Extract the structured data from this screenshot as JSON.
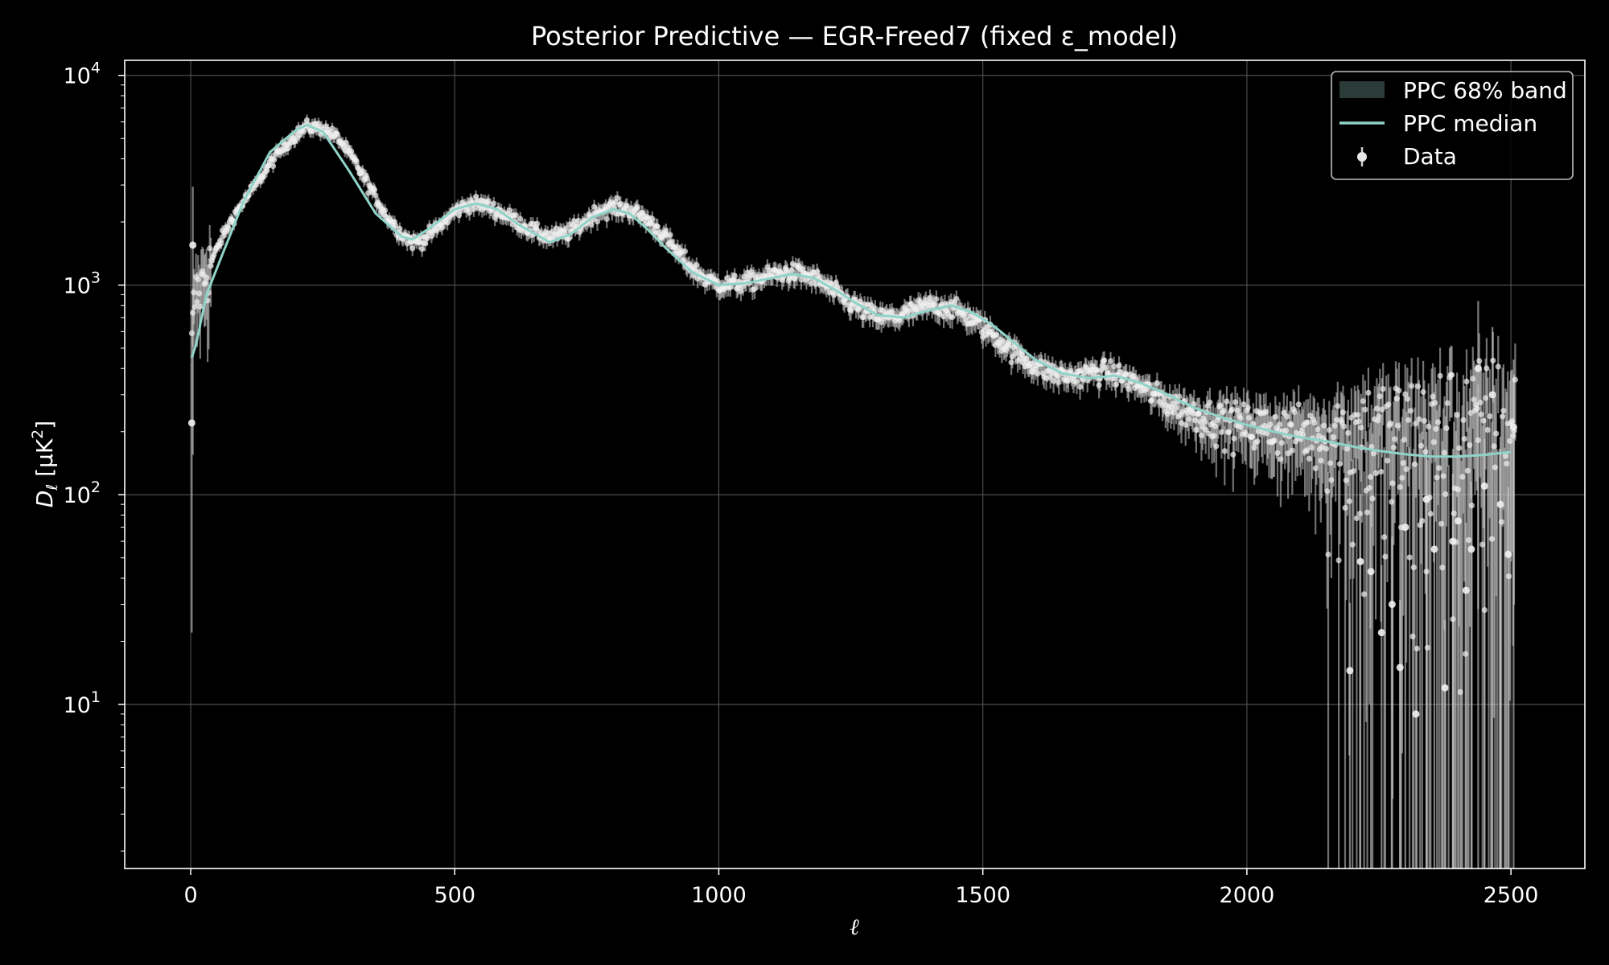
{
  "chart_data": {
    "type": "scatter",
    "title": "Posterior Predictive — EGR-Freed7 (fixed ε_model)",
    "xlabel": "ℓ",
    "ylabel": "D_ℓ [μK²]",
    "ylabel_main": "D",
    "ylabel_sub": "ℓ",
    "ylabel_unit_prefix": " [μK",
    "ylabel_unit_suffix": "]",
    "ylabel_unit_sup": "2",
    "x_scale": "linear",
    "y_scale": "log",
    "xlim": [
      -125,
      2640
    ],
    "ylim": [
      1.65,
      11800
    ],
    "x_ticks": [
      0,
      500,
      1000,
      1500,
      2000,
      2500
    ],
    "y_ticks": [
      {
        "value": 10,
        "base": "10",
        "exp": "1"
      },
      {
        "value": 100,
        "base": "10",
        "exp": "2"
      },
      {
        "value": 1000,
        "base": "10",
        "exp": "3"
      },
      {
        "value": 10000,
        "base": "10",
        "exp": "4"
      }
    ],
    "grid": true,
    "legend_position": "top-right",
    "legend": [
      {
        "label": "PPC 68% band",
        "kind": "band"
      },
      {
        "label": "PPC median",
        "kind": "line"
      },
      {
        "label": "Data",
        "kind": "errorbar"
      }
    ],
    "colors": {
      "background": "#000000",
      "band": "#2a3b38",
      "median": "#8fd3c9",
      "data": "#f0f0f0",
      "error": "#cfcfcf",
      "grid": "#5a5a5a",
      "text": "#ffffff"
    },
    "ppc_median": {
      "x": [
        2,
        10,
        30,
        60,
        100,
        150,
        200,
        220,
        250,
        300,
        350,
        400,
        420,
        450,
        500,
        540,
        580,
        620,
        680,
        720,
        760,
        800,
        830,
        860,
        900,
        950,
        1000,
        1050,
        1100,
        1140,
        1180,
        1220,
        1260,
        1300,
        1350,
        1400,
        1440,
        1480,
        1520,
        1560,
        1600,
        1650,
        1700,
        1750,
        1800,
        1850,
        1900,
        1950,
        2000,
        2050,
        2100,
        2150,
        2200,
        2250,
        2300,
        2350,
        2400,
        2450,
        2500
      ],
      "y": [
        450,
        520,
        900,
        1400,
        2500,
        4300,
        5500,
        5800,
        5400,
        3500,
        2200,
        1700,
        1650,
        1850,
        2300,
        2450,
        2300,
        1950,
        1600,
        1750,
        2100,
        2300,
        2200,
        1900,
        1500,
        1150,
        1000,
        1020,
        1080,
        1130,
        1080,
        950,
        820,
        720,
        700,
        760,
        800,
        740,
        640,
        530,
        440,
        380,
        360,
        370,
        340,
        300,
        260,
        235,
        215,
        200,
        188,
        180,
        170,
        162,
        156,
        152,
        152,
        155,
        160
      ]
    },
    "data_envelope": {
      "x": [
        2,
        5,
        10,
        20,
        30,
        45,
        60,
        80,
        100,
        130,
        160,
        190,
        220,
        250,
        280,
        310,
        340,
        370,
        400,
        420,
        440,
        470,
        500,
        530,
        560,
        590,
        620,
        650,
        680,
        710,
        740,
        770,
        800,
        830,
        860,
        890,
        920,
        950,
        980,
        1010,
        1040,
        1070,
        1100,
        1130,
        1160,
        1190,
        1220,
        1250,
        1280,
        1310,
        1340,
        1370,
        1400,
        1430,
        1460,
        1490,
        1520,
        1550,
        1580,
        1610,
        1640,
        1670,
        1700,
        1730,
        1760,
        1790,
        1820,
        1850,
        1880,
        1910,
        1940,
        1970,
        2000,
        2030,
        2060,
        2090,
        2120,
        2150,
        2180,
        2210,
        2240,
        2270,
        2300,
        2330,
        2360,
        2390,
        2420,
        2450,
        2480,
        2510
      ],
      "y": [
        500,
        750,
        900,
        1000,
        1150,
        1400,
        1700,
        2100,
        2500,
        3200,
        4100,
        5000,
        5700,
        5600,
        5000,
        3900,
        2900,
        2150,
        1750,
        1600,
        1650,
        1900,
        2250,
        2450,
        2400,
        2200,
        2000,
        1800,
        1700,
        1750,
        1950,
        2250,
        2350,
        2300,
        2100,
        1800,
        1450,
        1200,
        1050,
        1000,
        1020,
        1060,
        1120,
        1150,
        1130,
        1050,
        920,
        820,
        740,
        700,
        710,
        760,
        800,
        790,
        740,
        660,
        580,
        500,
        440,
        400,
        375,
        365,
        380,
        390,
        370,
        340,
        305,
        275,
        255,
        240,
        230,
        222,
        215,
        210,
        205,
        200,
        195,
        190,
        185,
        182,
        178,
        175,
        172,
        170,
        168,
        166,
        165,
        164,
        163,
        162
      ]
    },
    "data_highlights": [
      {
        "x": 2,
        "y": 220
      },
      {
        "x": 4,
        "y": 1550
      },
      {
        "x": 2195,
        "y": 14.5
      },
      {
        "x": 2215,
        "y": 48
      },
      {
        "x": 2235,
        "y": 43
      },
      {
        "x": 2255,
        "y": 22
      },
      {
        "x": 2275,
        "y": 30
      },
      {
        "x": 2290,
        "y": 15
      },
      {
        "x": 2300,
        "y": 70
      },
      {
        "x": 2320,
        "y": 9
      },
      {
        "x": 2340,
        "y": 95
      },
      {
        "x": 2355,
        "y": 55
      },
      {
        "x": 2375,
        "y": 12
      },
      {
        "x": 2390,
        "y": 60
      },
      {
        "x": 2400,
        "y": 75
      },
      {
        "x": 2415,
        "y": 35
      },
      {
        "x": 2425,
        "y": 55
      },
      {
        "x": 2438,
        "y": 400
      },
      {
        "x": 2450,
        "y": 110
      },
      {
        "x": 2465,
        "y": 300
      },
      {
        "x": 2480,
        "y": 90
      },
      {
        "x": 2495,
        "y": 52
      },
      {
        "x": 2505,
        "y": 210
      }
    ]
  }
}
